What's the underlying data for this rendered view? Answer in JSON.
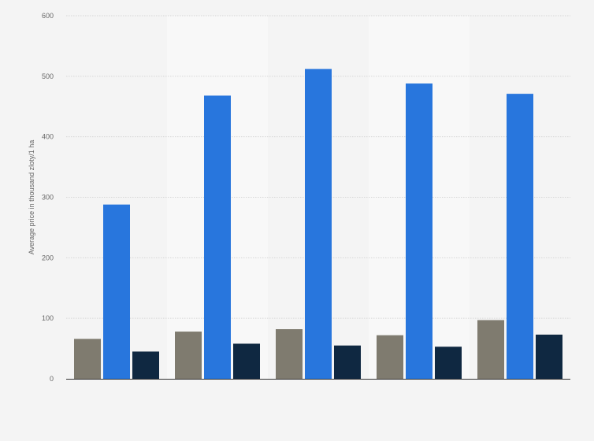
{
  "chart_data": {
    "type": "bar",
    "title": "",
    "xlabel": "",
    "ylabel": "Average price in thousand zloty/1 ha",
    "ylim": [
      0,
      600
    ],
    "yticks": [
      0,
      100,
      200,
      300,
      400,
      500,
      600
    ],
    "grid": true,
    "legend": "none",
    "categories": [
      "",
      "",
      "",
      "",
      ""
    ],
    "series": [
      {
        "color": "#7f7b6f",
        "values": [
          66,
          78,
          82,
          72,
          97
        ]
      },
      {
        "color": "#2876dd",
        "values": [
          288,
          468,
          512,
          488,
          471
        ]
      },
      {
        "color": "#0f2841",
        "values": [
          45,
          58,
          55,
          53,
          73
        ]
      }
    ]
  },
  "colors": {
    "background": "#f4f4f4",
    "band": "#f8f8f8",
    "gridline": "#d6d6d6",
    "axis": "#333333",
    "tick_text": "#666666"
  }
}
